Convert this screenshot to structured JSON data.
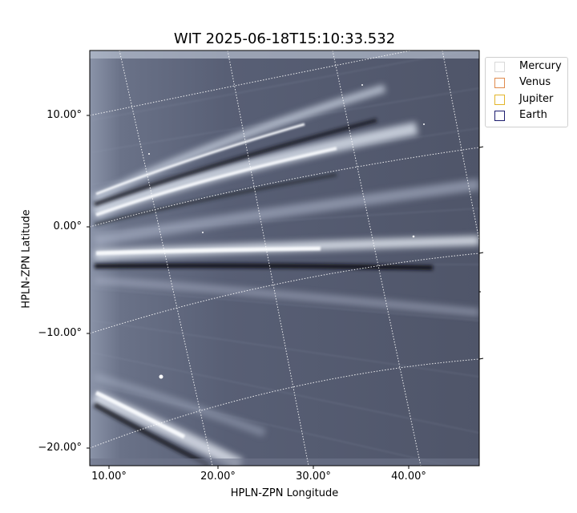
{
  "figure": {
    "title": "WIT 2025-06-18T15:10:33.532",
    "xlabel": "HPLN-ZPN Longitude",
    "ylabel": "HPLN-ZPN Latitude",
    "x_ticks": [
      "10.00°",
      "20.00°",
      "30.00°",
      "40.00°"
    ],
    "y_ticks": [
      "10.00°",
      "0.00°",
      "−10.00°",
      "−20.00°"
    ],
    "colormap": "bone-like grayscale with blue tint",
    "grid": true
  },
  "legend": {
    "items": [
      {
        "label": "Mercury",
        "color": "#d9d9d9"
      },
      {
        "label": "Venus",
        "color": "#e08a4c"
      },
      {
        "label": "Jupiter",
        "color": "#e3b52a"
      },
      {
        "label": "Earth",
        "color": "#1c1c6e"
      }
    ]
  }
}
